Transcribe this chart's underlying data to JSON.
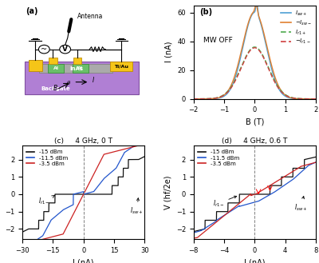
{
  "panel_b": {
    "title": "(b)",
    "xlabel": "B (T)",
    "ylabel": "I (nA)",
    "xlim": [
      -2,
      2
    ],
    "ylim": [
      0,
      65
    ],
    "yticks": [
      0,
      20,
      40,
      60
    ],
    "annotation": "MW OFF",
    "legend": [
      "$I_{sw+}$",
      "$-I_{sw-}$",
      "$I_{r1+}$",
      "$-I_{r1-}$"
    ],
    "line_colors": [
      "#4e9fd4",
      "#e08030",
      "#4daa4d",
      "#d04040"
    ],
    "line_styles": [
      "-",
      "-",
      "--",
      "--"
    ]
  },
  "panel_c": {
    "title": "(c)     4 GHz, 0 T",
    "xlabel": "I (nA)",
    "ylabel": "V (hf/2e)",
    "xlim": [
      -30,
      30
    ],
    "ylim": [
      -2.6,
      2.8
    ],
    "yticks": [
      -2,
      -1,
      0,
      1,
      2
    ],
    "xticks": [
      -30,
      -15,
      0,
      15,
      30
    ],
    "legend": [
      "-15 dBm",
      "-11.5 dBm",
      "-3.5 dBm"
    ],
    "line_colors": [
      "#111111",
      "#2255cc",
      "#cc2222"
    ]
  },
  "panel_d": {
    "title": "(d)     4 GHz, 0.6 T",
    "xlabel": "I (nA)",
    "ylabel": "V (hf/2e)",
    "xlim": [
      -8,
      8
    ],
    "ylim": [
      -2.6,
      2.8
    ],
    "yticks": [
      -2,
      -1,
      0,
      1,
      2
    ],
    "xticks": [
      -8,
      -4,
      0,
      4,
      8
    ],
    "legend": [
      "-15 dBm",
      "-11.5 dBm",
      "-3.5 dBm"
    ],
    "line_colors": [
      "#111111",
      "#2255cc",
      "#cc2222"
    ]
  }
}
